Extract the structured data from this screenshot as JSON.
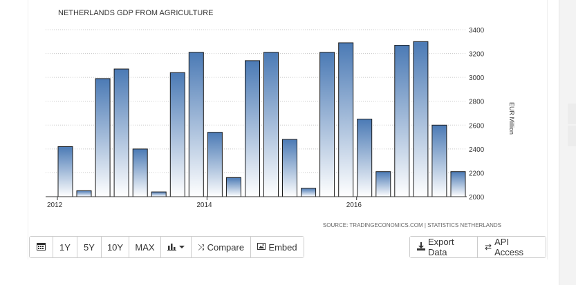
{
  "chart_data": {
    "type": "bar",
    "title": "NETHERLANDS GDP FROM AGRICULTURE",
    "ylabel": "EUR Million",
    "source": "SOURCE: TRADINGECONOMICS.COM | STATISTICS NETHERLANDS",
    "ylim": [
      2000,
      3400
    ],
    "yticks": [
      "3400",
      "3200",
      "3000",
      "2800",
      "2600",
      "2400",
      "2200",
      "2000"
    ],
    "xticks": [
      "2012",
      "2014",
      "2016"
    ],
    "grid": true,
    "bar_color_top": "#4b7ab5",
    "bar_color_bottom": "#ffffff",
    "values": [
      2420,
      2050,
      2990,
      3070,
      2400,
      2040,
      3040,
      3210,
      2540,
      2160,
      3140,
      3210,
      2480,
      2070,
      3210,
      3290,
      2650,
      2210,
      3270,
      3300,
      2600,
      2210
    ]
  },
  "toolbar_left": {
    "calendar_icon": "calendar-icon",
    "range_1y": "1Y",
    "range_5y": "5Y",
    "range_10y": "10Y",
    "range_max": "MAX",
    "chart_type_icon": "bar-chart-icon",
    "compare_label": "Compare",
    "embed_label": "Embed"
  },
  "toolbar_right": {
    "export_label": "Export Data",
    "api_label": "API Access"
  }
}
